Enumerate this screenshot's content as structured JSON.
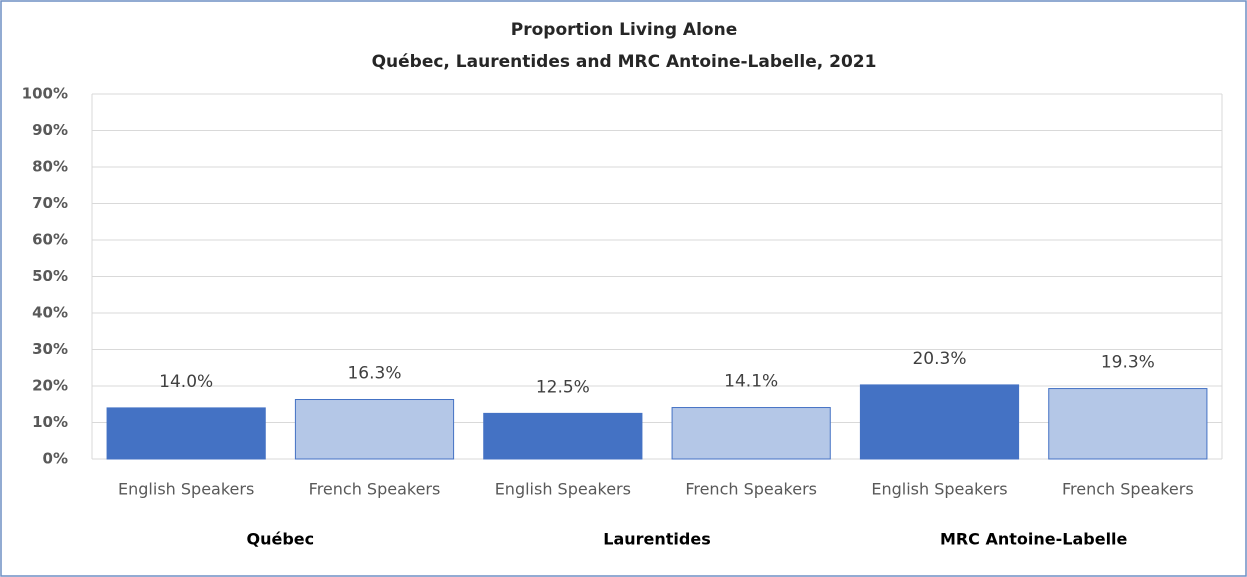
{
  "chart_data": {
    "type": "bar",
    "title": "Proportion Living Alone",
    "subtitle": "Québec, Laurentides and MRC Antoine-Labelle, 2021",
    "categories": [
      "English Speakers",
      "French Speakers",
      "English Speakers",
      "French Speakers",
      "English Speakers",
      "French Speakers"
    ],
    "groups": [
      "Québec",
      "Laurentides",
      "MRC Antoine-Labelle"
    ],
    "values": [
      14.0,
      16.3,
      12.5,
      14.1,
      20.3,
      19.3
    ],
    "value_labels": [
      "14.0%",
      "16.3%",
      "12.5%",
      "14.1%",
      "20.3%",
      "19.3%"
    ],
    "colors": [
      "#4472c4",
      "#b4c7e7",
      "#4472c4",
      "#b4c7e7",
      "#4472c4",
      "#b4c7e7"
    ],
    "ylim": [
      0,
      100
    ],
    "yticks": [
      {
        "value": 0,
        "label": "0%"
      },
      {
        "value": 10,
        "label": "10%"
      },
      {
        "value": 20,
        "label": "20%"
      },
      {
        "value": 30,
        "label": "30%"
      },
      {
        "value": 40,
        "label": "40%"
      },
      {
        "value": 50,
        "label": "50%"
      },
      {
        "value": 60,
        "label": "60%"
      },
      {
        "value": 70,
        "label": "70%"
      },
      {
        "value": 80,
        "label": "80%"
      },
      {
        "value": 90,
        "label": "90%"
      },
      {
        "value": 100,
        "label": "100%"
      }
    ],
    "grid": true
  }
}
